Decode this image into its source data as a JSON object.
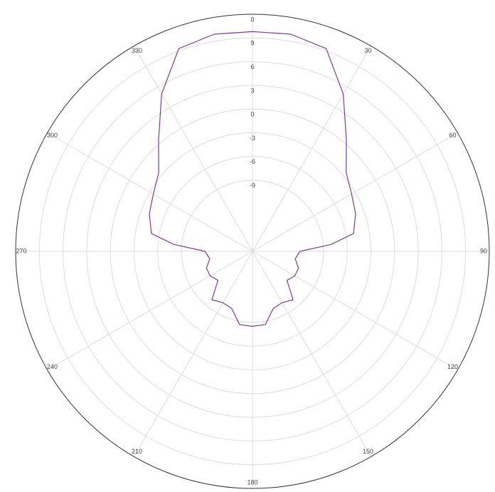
{
  "chart_data": {
    "type": "polar",
    "theta": [
      0,
      10,
      20,
      30,
      40,
      50,
      60,
      70,
      80,
      85,
      90,
      100,
      110,
      120,
      130,
      140,
      150,
      160,
      170,
      180,
      190,
      200,
      210,
      220,
      230,
      240,
      250,
      260,
      270,
      275,
      280,
      290,
      300,
      310,
      320,
      330,
      340,
      350
    ],
    "series": [
      {
        "color": "#7b3f8f",
        "values": [
          9.8,
          9.9,
          9.3,
          5.0,
          0.5,
          -2.5,
          -3.5,
          -4.1,
          -5.0,
          -8.0,
          -12.0,
          -12.5,
          -11.8,
          -11.8,
          -12.3,
          -10.0,
          -10.5,
          -10.3,
          -8.6,
          -8.5,
          -8.6,
          -10.3,
          -10.5,
          -10.0,
          -12.3,
          -11.8,
          -11.8,
          -12.5,
          -12.0,
          -8.0,
          -5.0,
          -4.1,
          -3.5,
          -2.5,
          0.5,
          5.0,
          9.3,
          9.9
        ]
      }
    ],
    "rlim": [
      -18,
      12
    ],
    "rticks": [
      -9,
      -6,
      -3,
      0,
      3,
      6,
      9
    ],
    "thetaticks": [
      0,
      30,
      60,
      90,
      120,
      150,
      180,
      210,
      240,
      270,
      300,
      330
    ],
    "grid": true
  }
}
